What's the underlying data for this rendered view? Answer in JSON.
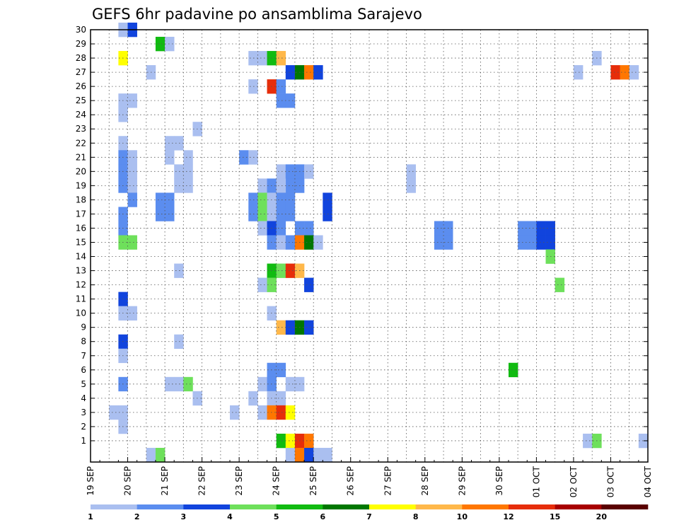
{
  "chart_data": {
    "type": "heatmap",
    "title": "GEFS 6hr padavine po ansamblima Sarajevo",
    "xlabel": "",
    "ylabel": "",
    "x_tick_labels": [
      "19 SEP",
      "20 SEP",
      "21 SEP",
      "22 SEP",
      "23 SEP",
      "24 SEP",
      "25 SEP",
      "26 SEP",
      "27 SEP",
      "28 SEP",
      "29 SEP",
      "30 SEP",
      "01 OCT",
      "02 OCT",
      "03 OCT",
      "04 OCT"
    ],
    "y_tick_labels": [
      "1",
      "2",
      "3",
      "4",
      "5",
      "6",
      "7",
      "8",
      "9",
      "10",
      "11",
      "12",
      "13",
      "14",
      "15",
      "16",
      "17",
      "18",
      "19",
      "20",
      "21",
      "22",
      "23",
      "24",
      "25",
      "26",
      "27",
      "28",
      "29",
      "30"
    ],
    "x_range_steps": [
      0,
      60
    ],
    "y_range": [
      0,
      30
    ],
    "grid": true,
    "legend_placement": "bottom",
    "color_levels": [
      1,
      2,
      3,
      4,
      5,
      6,
      7,
      8,
      10,
      12,
      15,
      20
    ],
    "level_labels": [
      "1",
      "2",
      "3",
      "4",
      "5",
      "6",
      "7",
      "8",
      "10",
      "12",
      "15",
      "20"
    ],
    "level_colors": [
      "#aabff0",
      "#5b8def",
      "#1144dd",
      "#6ee05b",
      "#11bb11",
      "#007700",
      "#ffff00",
      "#ffb84a",
      "#ff7700",
      "#e62d0a",
      "#a80000",
      "#5a0000"
    ],
    "cells": [
      {
        "x": 3,
        "y": 30,
        "v": 1
      },
      {
        "x": 4,
        "y": 30,
        "v": 3
      },
      {
        "x": 7,
        "y": 29,
        "v": 5
      },
      {
        "x": 8,
        "y": 29,
        "v": 1
      },
      {
        "x": 3,
        "y": 28,
        "v": 7
      },
      {
        "x": 17,
        "y": 28,
        "v": 1
      },
      {
        "x": 18,
        "y": 28,
        "v": 1
      },
      {
        "x": 19,
        "y": 28,
        "v": 5
      },
      {
        "x": 20,
        "y": 28,
        "v": 8
      },
      {
        "x": 54,
        "y": 28,
        "v": 1
      },
      {
        "x": 6,
        "y": 27,
        "v": 1
      },
      {
        "x": 21,
        "y": 27,
        "v": 3
      },
      {
        "x": 22,
        "y": 27,
        "v": 6
      },
      {
        "x": 23,
        "y": 27,
        "v": 11
      },
      {
        "x": 24,
        "y": 27,
        "v": 3
      },
      {
        "x": 52,
        "y": 27,
        "v": 1
      },
      {
        "x": 56,
        "y": 27,
        "v": 12
      },
      {
        "x": 57,
        "y": 27,
        "v": 11
      },
      {
        "x": 58,
        "y": 27,
        "v": 1
      },
      {
        "x": 17,
        "y": 26,
        "v": 1
      },
      {
        "x": 19,
        "y": 26,
        "v": 12
      },
      {
        "x": 20,
        "y": 26,
        "v": 2
      },
      {
        "x": 3,
        "y": 25,
        "v": 1
      },
      {
        "x": 4,
        "y": 25,
        "v": 1
      },
      {
        "x": 20,
        "y": 25,
        "v": 2
      },
      {
        "x": 21,
        "y": 25,
        "v": 2
      },
      {
        "x": 3,
        "y": 24,
        "v": 1
      },
      {
        "x": 11,
        "y": 23,
        "v": 1
      },
      {
        "x": 3,
        "y": 22,
        "v": 1
      },
      {
        "x": 8,
        "y": 22,
        "v": 1
      },
      {
        "x": 9,
        "y": 22,
        "v": 1
      },
      {
        "x": 3,
        "y": 21,
        "v": 2
      },
      {
        "x": 4,
        "y": 21,
        "v": 1
      },
      {
        "x": 8,
        "y": 21,
        "v": 1
      },
      {
        "x": 10,
        "y": 21,
        "v": 1
      },
      {
        "x": 16,
        "y": 21,
        "v": 2
      },
      {
        "x": 17,
        "y": 21,
        "v": 1
      },
      {
        "x": 3,
        "y": 20,
        "v": 2
      },
      {
        "x": 4,
        "y": 20,
        "v": 1
      },
      {
        "x": 9,
        "y": 20,
        "v": 1
      },
      {
        "x": 10,
        "y": 20,
        "v": 1
      },
      {
        "x": 20,
        "y": 20,
        "v": 1
      },
      {
        "x": 21,
        "y": 20,
        "v": 2
      },
      {
        "x": 22,
        "y": 20,
        "v": 2
      },
      {
        "x": 23,
        "y": 20,
        "v": 1
      },
      {
        "x": 34,
        "y": 20,
        "v": 1
      },
      {
        "x": 3,
        "y": 19,
        "v": 2
      },
      {
        "x": 4,
        "y": 19,
        "v": 1
      },
      {
        "x": 9,
        "y": 19,
        "v": 1
      },
      {
        "x": 10,
        "y": 19,
        "v": 1
      },
      {
        "x": 21,
        "y": 19,
        "v": 2
      },
      {
        "x": 22,
        "y": 19,
        "v": 2
      },
      {
        "x": 34,
        "y": 19,
        "v": 1
      },
      {
        "x": 18,
        "y": 19,
        "v": 1
      },
      {
        "x": 19,
        "y": 19,
        "v": 2
      },
      {
        "x": 20,
        "y": 19,
        "v": 1
      },
      {
        "x": 4,
        "y": 18,
        "v": 2
      },
      {
        "x": 7,
        "y": 18,
        "v": 2
      },
      {
        "x": 8,
        "y": 18,
        "v": 2
      },
      {
        "x": 17,
        "y": 18,
        "v": 2
      },
      {
        "x": 18,
        "y": 18,
        "v": 4
      },
      {
        "x": 19,
        "y": 18,
        "v": 1
      },
      {
        "x": 20,
        "y": 18,
        "v": 2
      },
      {
        "x": 21,
        "y": 18,
        "v": 2
      },
      {
        "x": 25,
        "y": 18,
        "v": 3
      },
      {
        "x": 3,
        "y": 17,
        "v": 2
      },
      {
        "x": 7,
        "y": 17,
        "v": 2
      },
      {
        "x": 8,
        "y": 17,
        "v": 2
      },
      {
        "x": 17,
        "y": 17,
        "v": 2
      },
      {
        "x": 18,
        "y": 17,
        "v": 4
      },
      {
        "x": 19,
        "y": 17,
        "v": 1
      },
      {
        "x": 20,
        "y": 17,
        "v": 2
      },
      {
        "x": 21,
        "y": 17,
        "v": 2
      },
      {
        "x": 25,
        "y": 17,
        "v": 3
      },
      {
        "x": 3,
        "y": 16,
        "v": 2
      },
      {
        "x": 18,
        "y": 16,
        "v": 1
      },
      {
        "x": 19,
        "y": 16,
        "v": 3
      },
      {
        "x": 20,
        "y": 16,
        "v": 2
      },
      {
        "x": 22,
        "y": 16,
        "v": 2
      },
      {
        "x": 23,
        "y": 16,
        "v": 2
      },
      {
        "x": 3,
        "y": 15,
        "v": 4
      },
      {
        "x": 4,
        "y": 15,
        "v": 4
      },
      {
        "x": 19,
        "y": 15,
        "v": 2
      },
      {
        "x": 20,
        "y": 15,
        "v": 1
      },
      {
        "x": 21,
        "y": 15,
        "v": 2
      },
      {
        "x": 22,
        "y": 15,
        "v": 10
      },
      {
        "x": 23,
        "y": 15,
        "v": 6
      },
      {
        "x": 24,
        "y": 15,
        "v": 1
      },
      {
        "x": 37,
        "y": 15,
        "v": 2
      },
      {
        "x": 38,
        "y": 15,
        "v": 2
      },
      {
        "x": 46,
        "y": 15,
        "v": 2
      },
      {
        "x": 47,
        "y": 15,
        "v": 2
      },
      {
        "x": 48,
        "y": 15,
        "v": 3
      },
      {
        "x": 49,
        "y": 15,
        "v": 3
      },
      {
        "x": 37,
        "y": 16,
        "v": 2
      },
      {
        "x": 38,
        "y": 16,
        "v": 2
      },
      {
        "x": 46,
        "y": 16,
        "v": 2
      },
      {
        "x": 47,
        "y": 16,
        "v": 2
      },
      {
        "x": 48,
        "y": 16,
        "v": 3
      },
      {
        "x": 49,
        "y": 16,
        "v": 3
      },
      {
        "x": 49,
        "y": 14,
        "v": 4
      },
      {
        "x": 19,
        "y": 13,
        "v": 5
      },
      {
        "x": 20,
        "y": 13,
        "v": 4
      },
      {
        "x": 21,
        "y": 13,
        "v": 12
      },
      {
        "x": 22,
        "y": 13,
        "v": 8
      },
      {
        "x": 9,
        "y": 13,
        "v": 1
      },
      {
        "x": 18,
        "y": 12,
        "v": 1
      },
      {
        "x": 19,
        "y": 12,
        "v": 4
      },
      {
        "x": 23,
        "y": 12,
        "v": 3
      },
      {
        "x": 50,
        "y": 12,
        "v": 4
      },
      {
        "x": 3,
        "y": 11,
        "v": 3
      },
      {
        "x": 3,
        "y": 10,
        "v": 1
      },
      {
        "x": 4,
        "y": 10,
        "v": 1
      },
      {
        "x": 19,
        "y": 10,
        "v": 1
      },
      {
        "x": 20,
        "y": 9,
        "v": 8
      },
      {
        "x": 21,
        "y": 9,
        "v": 3
      },
      {
        "x": 22,
        "y": 9,
        "v": 6
      },
      {
        "x": 23,
        "y": 9,
        "v": 3
      },
      {
        "x": 3,
        "y": 8,
        "v": 3
      },
      {
        "x": 9,
        "y": 8,
        "v": 1
      },
      {
        "x": 3,
        "y": 7,
        "v": 1
      },
      {
        "x": 19,
        "y": 6,
        "v": 2
      },
      {
        "x": 20,
        "y": 6,
        "v": 2
      },
      {
        "x": 45,
        "y": 6,
        "v": 5
      },
      {
        "x": 3,
        "y": 5,
        "v": 2
      },
      {
        "x": 8,
        "y": 5,
        "v": 1
      },
      {
        "x": 9,
        "y": 5,
        "v": 1
      },
      {
        "x": 10,
        "y": 5,
        "v": 4
      },
      {
        "x": 18,
        "y": 5,
        "v": 1
      },
      {
        "x": 19,
        "y": 5,
        "v": 2
      },
      {
        "x": 21,
        "y": 5,
        "v": 1
      },
      {
        "x": 22,
        "y": 5,
        "v": 1
      },
      {
        "x": 11,
        "y": 4,
        "v": 1
      },
      {
        "x": 17,
        "y": 4,
        "v": 1
      },
      {
        "x": 19,
        "y": 4,
        "v": 1
      },
      {
        "x": 20,
        "y": 4,
        "v": 1
      },
      {
        "x": 2,
        "y": 3,
        "v": 1
      },
      {
        "x": 3,
        "y": 3,
        "v": 1
      },
      {
        "x": 15,
        "y": 3,
        "v": 1
      },
      {
        "x": 18,
        "y": 3,
        "v": 1
      },
      {
        "x": 19,
        "y": 3,
        "v": 10
      },
      {
        "x": 20,
        "y": 3,
        "v": 12
      },
      {
        "x": 21,
        "y": 3,
        "v": 7
      },
      {
        "x": 3,
        "y": 2,
        "v": 1
      },
      {
        "x": 20,
        "y": 1,
        "v": 5
      },
      {
        "x": 21,
        "y": 1,
        "v": 7
      },
      {
        "x": 22,
        "y": 1,
        "v": 12
      },
      {
        "x": 23,
        "y": 1,
        "v": 11
      },
      {
        "x": 53,
        "y": 1,
        "v": 1
      },
      {
        "x": 54,
        "y": 1,
        "v": 4
      },
      {
        "x": 59,
        "y": 1,
        "v": 1
      },
      {
        "x": 6,
        "y": 0,
        "v": 1
      },
      {
        "x": 7,
        "y": 0,
        "v": 4
      },
      {
        "x": 21,
        "y": 0,
        "v": 1
      },
      {
        "x": 22,
        "y": 0,
        "v": 10
      },
      {
        "x": 23,
        "y": 0,
        "v": 3
      },
      {
        "x": 24,
        "y": 0,
        "v": 1
      },
      {
        "x": 25,
        "y": 0,
        "v": 1
      }
    ]
  }
}
